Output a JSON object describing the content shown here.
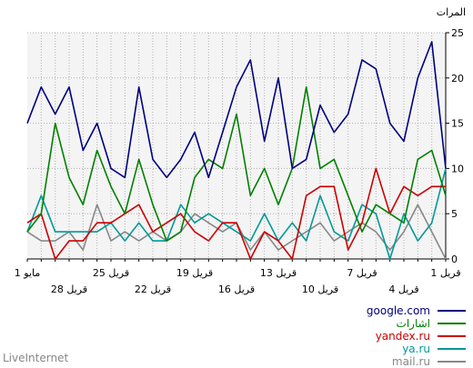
{
  "chart_data": {
    "type": "line",
    "ylabel": "المرات",
    "ylim": [
      0,
      25
    ],
    "yticks": [
      0,
      5,
      10,
      15,
      20,
      25
    ],
    "grid": true,
    "x": [
      1,
      2,
      3,
      4,
      5,
      6,
      7,
      8,
      9,
      10,
      11,
      12,
      13,
      14,
      15,
      16,
      17,
      18,
      19,
      20,
      21,
      22,
      23,
      24,
      25,
      26,
      27,
      28,
      29,
      30,
      31
    ],
    "x_tick_labels_row1": [
      {
        "x": 1,
        "label": "1 قريل"
      },
      {
        "x": 7,
        "label": "7 قريل"
      },
      {
        "x": 13,
        "label": "13 قريل"
      },
      {
        "x": 19,
        "label": "19 قريل"
      },
      {
        "x": 25,
        "label": "25 قريل"
      },
      {
        "x": 31,
        "label": "1 مايو"
      }
    ],
    "x_tick_labels_row2": [
      {
        "x": 4,
        "label": "4 قريل"
      },
      {
        "x": 10,
        "label": "10 قريل"
      },
      {
        "x": 16,
        "label": "16 قريل"
      },
      {
        "x": 22,
        "label": "22 قريل"
      },
      {
        "x": 28,
        "label": "28 قريل"
      }
    ],
    "x_order": "right-to-left",
    "legend_position": "bottom-right",
    "series": [
      {
        "name": "google.com",
        "color": "#00007f",
        "values": [
          10,
          24,
          20,
          13,
          15,
          21,
          22,
          16,
          14,
          17,
          11,
          10,
          20,
          13,
          22,
          19,
          14,
          9,
          14,
          11,
          9,
          11,
          19,
          9,
          10,
          15,
          12,
          19,
          16,
          19,
          15
        ]
      },
      {
        "name": "اشارات",
        "color": "#008000",
        "values": [
          7,
          12,
          11,
          4,
          5,
          6,
          3,
          7,
          11,
          10,
          19,
          10,
          6,
          10,
          7,
          16,
          10,
          11,
          9,
          3,
          2,
          6,
          11,
          5,
          8,
          12,
          6,
          9,
          15,
          5,
          3
        ]
      },
      {
        "name": "yandex.ru",
        "color": "#cc0000",
        "values": [
          8,
          8,
          7,
          8,
          5,
          10,
          4,
          1,
          8,
          8,
          7,
          0,
          2,
          3,
          0,
          4,
          4,
          2,
          3,
          5,
          4,
          3,
          6,
          5,
          4,
          4,
          2,
          2,
          0,
          5,
          4
        ]
      },
      {
        "name": "ya.ru",
        "color": "#009999",
        "values": [
          10,
          4,
          2,
          5,
          0,
          5,
          6,
          2,
          3,
          7,
          2,
          4,
          2,
          5,
          2,
          3,
          4,
          5,
          4,
          6,
          2,
          2,
          4,
          2,
          4,
          3,
          3,
          3,
          3,
          7,
          3
        ]
      },
      {
        "name": "mail.ru",
        "color": "#888888",
        "values": [
          0,
          3,
          6,
          3,
          1,
          3,
          4,
          3,
          2,
          4,
          3,
          2,
          1,
          3,
          1,
          4,
          3,
          4,
          5,
          3,
          2,
          3,
          2,
          3,
          2,
          6,
          1,
          3,
          2,
          2,
          3
        ]
      }
    ]
  },
  "footer": "LiveInternet"
}
